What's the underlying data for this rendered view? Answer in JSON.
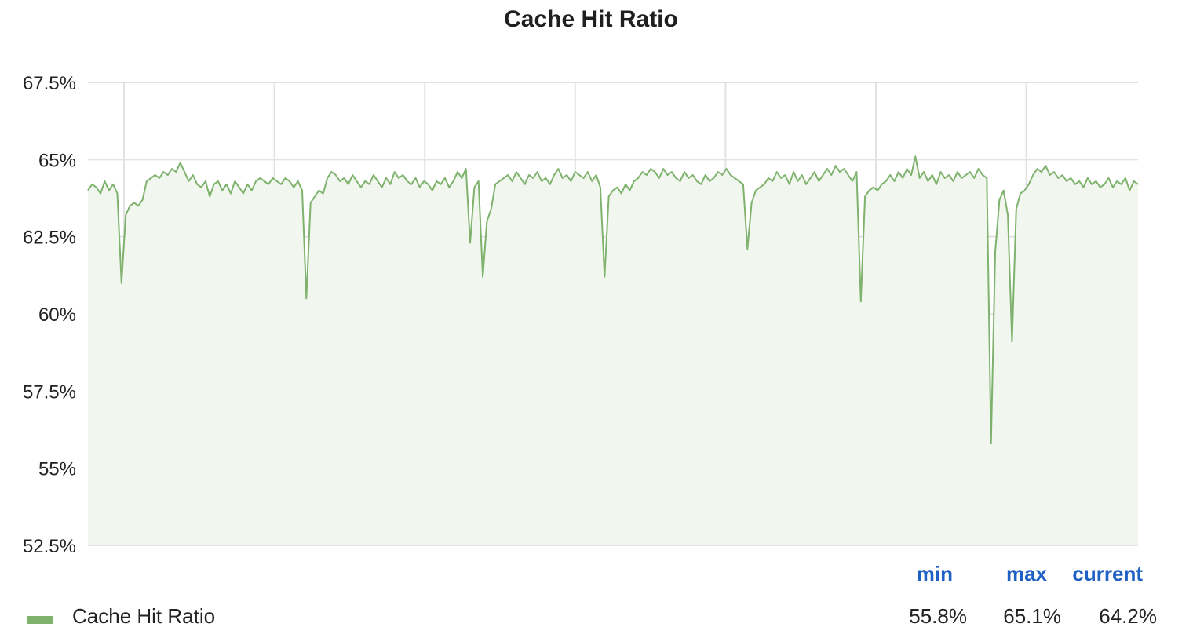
{
  "panel": {
    "title": "Cache Hit Ratio"
  },
  "colors": {
    "series": "#7eb26d",
    "fill": "#f1f7ee",
    "grid": "#e2e2e2",
    "legend_header": "#1f60c4"
  },
  "legend": {
    "headers": {
      "min": "min",
      "max": "max",
      "current": "current"
    },
    "series_name": "Cache Hit Ratio",
    "values": {
      "min": "55.8%",
      "max": "65.1%",
      "current": "64.2%"
    }
  },
  "chart_data": {
    "type": "area",
    "title": "Cache Hit Ratio",
    "y_unit": "%",
    "ylim": [
      52.5,
      67.5
    ],
    "yticks": [
      67.5,
      65,
      62.5,
      60,
      57.5,
      55,
      52.5
    ],
    "ytick_labels": [
      "67.5%",
      "65%",
      "62.5%",
      "60%",
      "57.5%",
      "55%",
      "52.5%"
    ],
    "x_tick_count": 7,
    "grid": true,
    "legend_position": "bottom",
    "series": [
      {
        "name": "Cache Hit Ratio",
        "values": [
          64.0,
          64.2,
          64.1,
          63.9,
          64.3,
          64.0,
          64.2,
          63.9,
          61.0,
          63.2,
          63.5,
          63.6,
          63.5,
          63.7,
          64.3,
          64.4,
          64.5,
          64.4,
          64.6,
          64.5,
          64.7,
          64.6,
          64.9,
          64.6,
          64.3,
          64.5,
          64.2,
          64.1,
          64.3,
          63.8,
          64.2,
          64.3,
          64.0,
          64.2,
          63.9,
          64.3,
          64.1,
          63.9,
          64.2,
          64.0,
          64.3,
          64.4,
          64.3,
          64.2,
          64.4,
          64.3,
          64.2,
          64.4,
          64.3,
          64.1,
          64.3,
          64.0,
          60.5,
          63.6,
          63.8,
          64.0,
          63.9,
          64.4,
          64.6,
          64.5,
          64.3,
          64.4,
          64.2,
          64.5,
          64.3,
          64.1,
          64.3,
          64.2,
          64.5,
          64.3,
          64.1,
          64.4,
          64.2,
          64.6,
          64.4,
          64.5,
          64.3,
          64.2,
          64.4,
          64.1,
          64.3,
          64.2,
          64.0,
          64.3,
          64.2,
          64.4,
          64.1,
          64.3,
          64.6,
          64.4,
          64.7,
          62.3,
          64.1,
          64.3,
          61.2,
          63.0,
          63.4,
          64.2,
          64.3,
          64.4,
          64.5,
          64.3,
          64.6,
          64.4,
          64.2,
          64.5,
          64.4,
          64.6,
          64.3,
          64.4,
          64.2,
          64.5,
          64.7,
          64.4,
          64.5,
          64.3,
          64.6,
          64.5,
          64.4,
          64.6,
          64.3,
          64.5,
          64.1,
          61.2,
          63.8,
          64.0,
          64.1,
          63.9,
          64.2,
          64.0,
          64.3,
          64.4,
          64.6,
          64.5,
          64.7,
          64.6,
          64.4,
          64.7,
          64.5,
          64.6,
          64.4,
          64.3,
          64.6,
          64.4,
          64.5,
          64.3,
          64.2,
          64.5,
          64.3,
          64.4,
          64.6,
          64.5,
          64.7,
          64.5,
          64.4,
          64.3,
          64.2,
          62.1,
          63.6,
          64.0,
          64.1,
          64.2,
          64.4,
          64.3,
          64.6,
          64.4,
          64.5,
          64.2,
          64.6,
          64.3,
          64.5,
          64.2,
          64.4,
          64.6,
          64.3,
          64.5,
          64.7,
          64.5,
          64.8,
          64.6,
          64.7,
          64.5,
          64.3,
          64.6,
          60.4,
          63.8,
          64.0,
          64.1,
          64.0,
          64.2,
          64.3,
          64.5,
          64.3,
          64.6,
          64.4,
          64.7,
          64.5,
          65.1,
          64.4,
          64.6,
          64.3,
          64.5,
          64.2,
          64.6,
          64.4,
          64.5,
          64.3,
          64.6,
          64.4,
          64.5,
          64.6,
          64.4,
          64.7,
          64.5,
          64.4,
          55.8,
          62.0,
          63.7,
          64.0,
          63.2,
          59.1,
          63.4,
          63.9,
          64.0,
          64.2,
          64.5,
          64.7,
          64.6,
          64.8,
          64.5,
          64.6,
          64.4,
          64.5,
          64.3,
          64.4,
          64.2,
          64.3,
          64.1,
          64.4,
          64.2,
          64.3,
          64.1,
          64.2,
          64.4,
          64.1,
          64.3,
          64.2,
          64.4,
          64.0,
          64.3,
          64.2
        ]
      }
    ]
  }
}
